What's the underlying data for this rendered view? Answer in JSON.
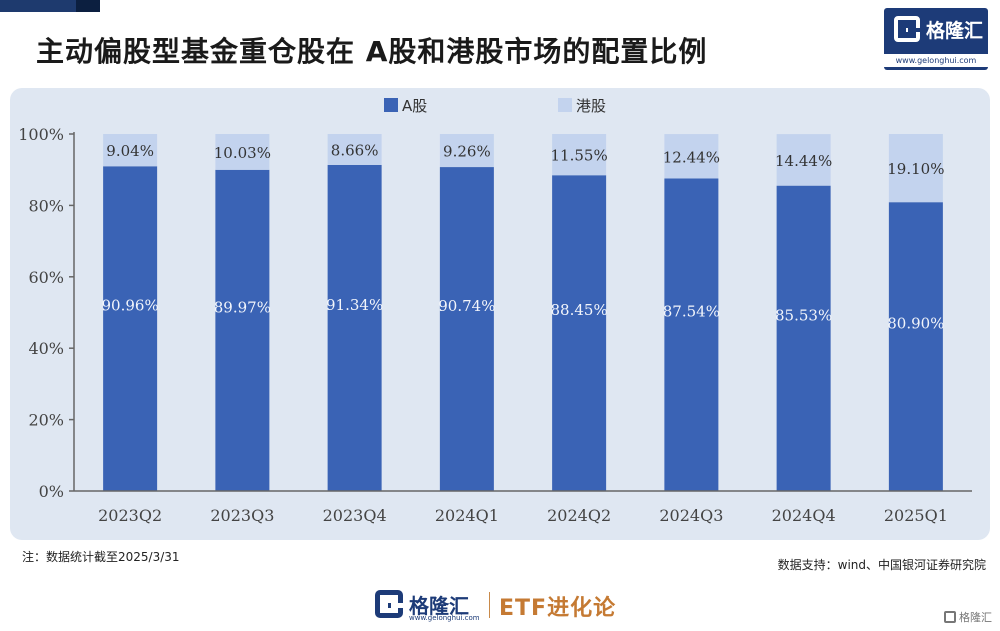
{
  "title": "主动偏股型基金重仓股在 A股和港股市场的配置比例",
  "logo": {
    "brand": "格隆汇",
    "url": "www.gelonghui.com"
  },
  "footer": {
    "brand": "格隆汇",
    "url": "www.gelonghui.com",
    "etf": "ETF进化论"
  },
  "corner_mark": "格隆汇",
  "note": "注：数据统计截至2025/3/31",
  "source": "数据支持：wind、中国银河证券研究院",
  "colors": {
    "a_share": "#3a63b5",
    "hk_share": "#c3d3ee",
    "panel": "#dfe7f2"
  },
  "chart_data": {
    "type": "bar",
    "stacked": true,
    "categories": [
      "2023Q2",
      "2023Q3",
      "2023Q4",
      "2024Q1",
      "2024Q2",
      "2024Q3",
      "2024Q4",
      "2025Q1"
    ],
    "series": [
      {
        "name": "A股",
        "values": [
          90.96,
          89.97,
          91.34,
          90.74,
          88.45,
          87.54,
          85.53,
          80.9
        ],
        "labels": [
          "90.96%",
          "89.97%",
          "91.34%",
          "90.74%",
          "88.45%",
          "87.54%",
          "85.53%",
          "80.90%"
        ]
      },
      {
        "name": "港股",
        "values": [
          9.04,
          10.03,
          8.66,
          9.26,
          11.55,
          12.44,
          14.44,
          19.1
        ],
        "labels": [
          "9.04%",
          "10.03%",
          "8.66%",
          "9.26%",
          "11.55%",
          "12.44%",
          "14.44%",
          "19.10%"
        ]
      }
    ],
    "yticks": [
      "0%",
      "20%",
      "40%",
      "60%",
      "80%",
      "100%"
    ],
    "ylim": [
      0,
      100
    ],
    "legend_position": "top-center",
    "grid": false
  }
}
